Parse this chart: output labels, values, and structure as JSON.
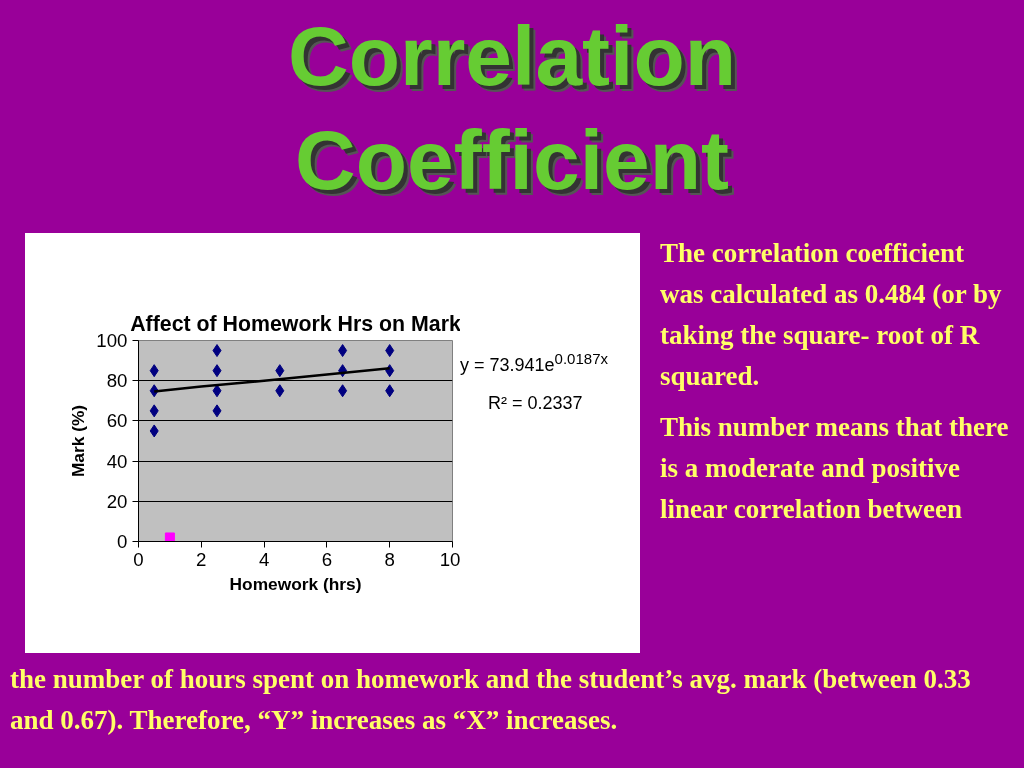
{
  "chart_data": {
    "type": "scatter",
    "title": "Affect of Homework Hrs on Mark",
    "xlabel": "Homework (hrs)",
    "ylabel": "Mark (%)",
    "xlim": [
      0,
      10
    ],
    "xticks": [
      0,
      2,
      4,
      6,
      8,
      10
    ],
    "ylim": [
      0,
      100
    ],
    "yticks": [
      0,
      20,
      40,
      60,
      80,
      100
    ],
    "grid": "y",
    "series": [
      {
        "marker": "diamond",
        "color": "#000080",
        "x": [
          0.5,
          0.5,
          0.5,
          0.5,
          2.5,
          2.5,
          2.5,
          2.5,
          4.5,
          4.5,
          6.5,
          6.5,
          6.5,
          8,
          8,
          8
        ],
        "values": [
          85,
          75,
          65,
          55,
          95,
          85,
          75,
          65,
          85,
          75,
          95,
          85,
          75,
          95,
          85,
          75
        ]
      },
      {
        "type": "scatter",
        "marker": "square",
        "color": "#ff00ff",
        "x": [
          1
        ],
        "values": [
          2
        ]
      },
      {
        "type": "line",
        "marker": "none",
        "color": "#000000",
        "x": [
          0.5,
          2,
          4,
          6,
          8
        ],
        "values": [
          74.6,
          77.1,
          80.0,
          83.1,
          86.2
        ]
      }
    ],
    "annotations": [
      "Correlation Coefficient",
      "y = 73.941e$^{0.0187x}$",
      "R² = 0.2337",
      "The correlation coefficient was calculated as 0.484 (or by taking the square- root of R squared.",
      "This number means that there is a moderate and positive linear correlation between",
      "the number of hours spent on homework and the student’s avg. mark (between 0.33 and 0.67). Therefore, “Y” increases as “X” increases."
    ]
  }
}
